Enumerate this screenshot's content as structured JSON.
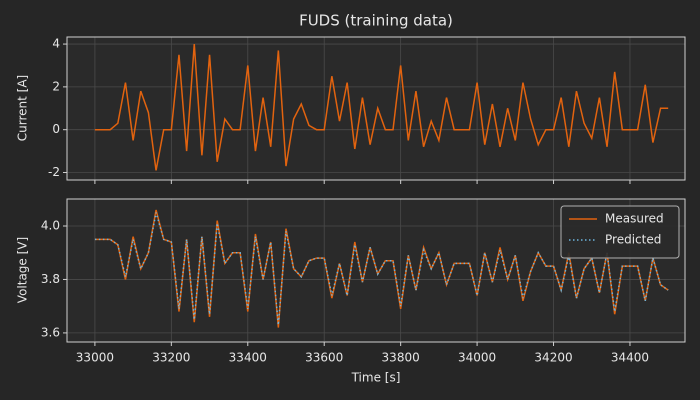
{
  "chart_data": [
    {
      "type": "line",
      "title": "FUDS (training data)",
      "ylabel": "Current [A]",
      "x": [
        33000,
        33020,
        33040,
        33060,
        33080,
        33100,
        33120,
        33140,
        33160,
        33180,
        33200,
        33220,
        33240,
        33260,
        33280,
        33300,
        33320,
        33340,
        33360,
        33380,
        33400,
        33420,
        33440,
        33460,
        33480,
        33500,
        33520,
        33540,
        33560,
        33580,
        33600,
        33620,
        33640,
        33660,
        33680,
        33700,
        33720,
        33740,
        33760,
        33780,
        33800,
        33820,
        33840,
        33860,
        33880,
        33900,
        33920,
        33940,
        33960,
        33980,
        34000,
        34020,
        34040,
        34060,
        34080,
        34100,
        34120,
        34140,
        34160,
        34180,
        34200,
        34220,
        34240,
        34260,
        34280,
        34300,
        34320,
        34340,
        34360,
        34380,
        34400,
        34420,
        34440,
        34460,
        34480,
        34500
      ],
      "series": [
        {
          "name": "Current",
          "color": "#e2630f",
          "values": [
            0,
            0,
            0,
            0.3,
            2.2,
            -0.5,
            1.8,
            0.8,
            -1.9,
            0,
            0,
            3.5,
            -1.0,
            4,
            -1.2,
            3.5,
            -1.5,
            0.5,
            0,
            0,
            3.0,
            -1.0,
            1.5,
            -0.8,
            3.7,
            -1.7,
            0.5,
            1.2,
            0.2,
            0,
            0,
            2.5,
            0.4,
            2.2,
            -0.9,
            1.5,
            -0.7,
            1.0,
            0,
            0,
            3.0,
            -0.5,
            1.8,
            -0.8,
            0.4,
            -0.5,
            1.5,
            0,
            0,
            0,
            2.2,
            -0.7,
            1.2,
            -0.8,
            1.0,
            -0.5,
            2.2,
            0.5,
            -0.7,
            0,
            0,
            1.5,
            -0.8,
            1.8,
            0.3,
            -0.4,
            1.5,
            -0.8,
            2.7,
            0,
            0,
            0,
            2.1,
            -0.6,
            1.0,
            1.0
          ]
        }
      ],
      "xlim": [
        32927,
        34544
      ],
      "xticks": [
        33000,
        33200,
        33400,
        33600,
        33800,
        34000,
        34200,
        34400
      ],
      "ylim": [
        -2.35,
        4.33
      ],
      "yticks": [
        -2,
        0,
        2,
        4
      ],
      "grid": true
    },
    {
      "type": "line",
      "xlabel": "Time [s]",
      "ylabel": "Voltage [V]",
      "x": [
        33000,
        33020,
        33040,
        33060,
        33080,
        33100,
        33120,
        33140,
        33160,
        33180,
        33200,
        33220,
        33240,
        33260,
        33280,
        33300,
        33320,
        33340,
        33360,
        33380,
        33400,
        33420,
        33440,
        33460,
        33480,
        33500,
        33520,
        33540,
        33560,
        33580,
        33600,
        33620,
        33640,
        33660,
        33680,
        33700,
        33720,
        33740,
        33760,
        33780,
        33800,
        33820,
        33840,
        33860,
        33880,
        33900,
        33920,
        33940,
        33960,
        33980,
        34000,
        34020,
        34040,
        34060,
        34080,
        34100,
        34120,
        34140,
        34160,
        34180,
        34200,
        34220,
        34240,
        34260,
        34280,
        34300,
        34320,
        34340,
        34360,
        34380,
        34400,
        34420,
        34440,
        34460,
        34480,
        34500
      ],
      "series": [
        {
          "name": "Measured",
          "color": "#e2630f",
          "dash": false,
          "values": [
            3.95,
            3.95,
            3.95,
            3.93,
            3.8,
            3.96,
            3.84,
            3.9,
            4.06,
            3.95,
            3.94,
            3.68,
            3.95,
            3.64,
            3.96,
            3.66,
            4.02,
            3.86,
            3.9,
            3.9,
            3.68,
            3.97,
            3.8,
            3.94,
            3.62,
            3.99,
            3.84,
            3.81,
            3.87,
            3.88,
            3.88,
            3.73,
            3.86,
            3.74,
            3.94,
            3.79,
            3.92,
            3.82,
            3.87,
            3.87,
            3.69,
            3.89,
            3.76,
            3.92,
            3.84,
            3.9,
            3.78,
            3.86,
            3.86,
            3.86,
            3.74,
            3.9,
            3.79,
            3.92,
            3.8,
            3.89,
            3.72,
            3.83,
            3.9,
            3.85,
            3.85,
            3.76,
            3.9,
            3.73,
            3.84,
            3.88,
            3.75,
            3.9,
            3.67,
            3.85,
            3.85,
            3.85,
            3.72,
            3.88,
            3.78,
            3.76
          ]
        },
        {
          "name": "Predicted",
          "color": "#6cb4dc",
          "dash": true,
          "values": [
            3.95,
            3.95,
            3.95,
            3.93,
            3.81,
            3.95,
            3.84,
            3.9,
            4.05,
            3.95,
            3.94,
            3.69,
            3.95,
            3.65,
            3.96,
            3.67,
            4.01,
            3.86,
            3.9,
            3.9,
            3.69,
            3.96,
            3.8,
            3.94,
            3.63,
            3.98,
            3.84,
            3.81,
            3.87,
            3.88,
            3.88,
            3.74,
            3.86,
            3.74,
            3.93,
            3.79,
            3.92,
            3.82,
            3.87,
            3.87,
            3.7,
            3.89,
            3.76,
            3.91,
            3.84,
            3.9,
            3.78,
            3.86,
            3.86,
            3.86,
            3.74,
            3.9,
            3.79,
            3.91,
            3.8,
            3.89,
            3.73,
            3.83,
            3.9,
            3.85,
            3.85,
            3.76,
            3.89,
            3.73,
            3.84,
            3.88,
            3.75,
            3.9,
            3.68,
            3.85,
            3.85,
            3.85,
            3.72,
            3.88,
            3.78,
            3.76
          ]
        }
      ],
      "xlim": [
        32927,
        34544
      ],
      "xticks": [
        33000,
        33200,
        33400,
        33600,
        33800,
        34000,
        34200,
        34400
      ],
      "ylim": [
        3.566,
        4.101
      ],
      "yticks": [
        3.6,
        3.8,
        {
          "value": 4.0,
          "label": "4.0"
        }
      ],
      "grid": true,
      "legend": "upper right"
    }
  ]
}
